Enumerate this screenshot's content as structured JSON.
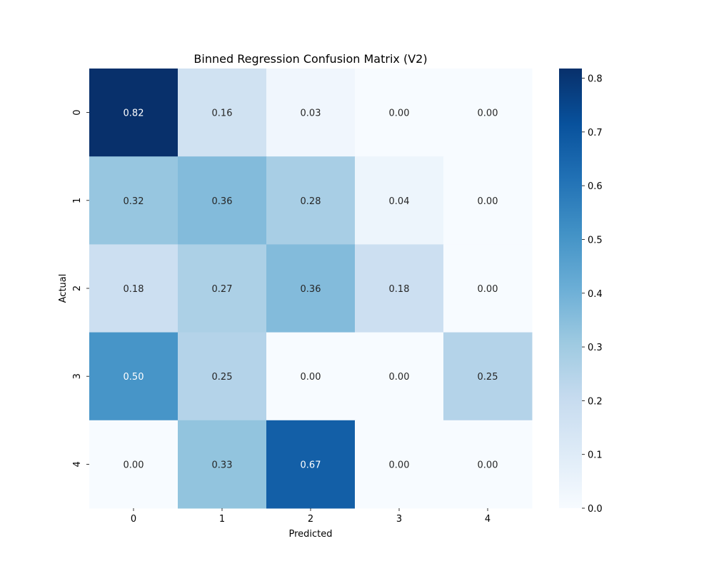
{
  "chart_data": {
    "type": "heatmap",
    "title": "Binned Regression Confusion Matrix (V2)",
    "xlabel": "Predicted",
    "ylabel": "Actual",
    "x_categories": [
      "0",
      "1",
      "2",
      "3",
      "4"
    ],
    "y_categories": [
      "0",
      "1",
      "2",
      "3",
      "4"
    ],
    "values": [
      [
        0.82,
        0.16,
        0.03,
        0.0,
        0.0
      ],
      [
        0.32,
        0.36,
        0.28,
        0.04,
        0.0
      ],
      [
        0.18,
        0.27,
        0.36,
        0.18,
        0.0
      ],
      [
        0.5,
        0.25,
        0.0,
        0.0,
        0.25
      ],
      [
        0.0,
        0.33,
        0.67,
        0.0,
        0.0
      ]
    ],
    "cell_labels": [
      [
        "0.82",
        "0.16",
        "0.03",
        "0.00",
        "0.00"
      ],
      [
        "0.32",
        "0.36",
        "0.28",
        "0.04",
        "0.00"
      ],
      [
        "0.18",
        "0.27",
        "0.36",
        "0.18",
        "0.00"
      ],
      [
        "0.50",
        "0.25",
        "0.00",
        "0.00",
        "0.25"
      ],
      [
        "0.00",
        "0.33",
        "0.67",
        "0.00",
        "0.00"
      ]
    ],
    "colorscale": "Blues",
    "color_range": [
      0.0,
      0.818
    ],
    "colorbar_ticks": [
      "0.0",
      "0.1",
      "0.2",
      "0.3",
      "0.4",
      "0.5",
      "0.6",
      "0.7",
      "0.8"
    ],
    "colorbar_tick_values": [
      0.0,
      0.1,
      0.2,
      0.3,
      0.4,
      0.5,
      0.6,
      0.7,
      0.8
    ],
    "grid": false,
    "legend": "colorbar-right"
  }
}
